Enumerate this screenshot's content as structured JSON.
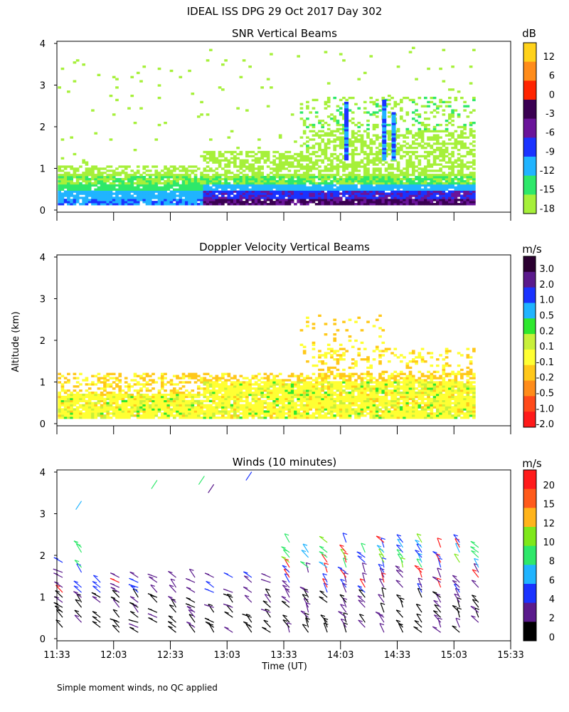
{
  "title": "IDEAL ISS DPG  29 Oct 2017 Day 302",
  "ylabel": "Altitude (km)",
  "xlabel": "Time (UT)",
  "footnote": "Simple moment winds, no QC applied",
  "x_ticks": [
    "11:33",
    "12:03",
    "12:33",
    "13:03",
    "13:33",
    "14:03",
    "14:33",
    "15:03",
    "15:33"
  ],
  "y_ticks": [
    "0",
    "1",
    "2",
    "3",
    "4"
  ],
  "chart_data": [
    {
      "type": "heatmap",
      "title": "SNR Vertical Beams",
      "xlabel": "Time (UT)",
      "ylabel": "Altitude (km)",
      "xlim": [
        "11:33",
        "15:33"
      ],
      "ylim": [
        0,
        4
      ],
      "colorbar_unit": "dB",
      "colorbar_labels": [
        "12",
        "6",
        "0",
        "-3",
        "-6",
        "-9",
        "-12",
        "-15",
        "-18"
      ],
      "colors": [
        "#ffd21a",
        "#ff8c1a",
        "#ff2400",
        "#3a0052",
        "#6a149a",
        "#1a33ff",
        "#20b4ff",
        "#2ee86a",
        "#a6f03a"
      ],
      "data_extent": {
        "x_start": "11:33",
        "x_end": "15:13",
        "y_min": 0.1,
        "y_max": 4.0
      }
    },
    {
      "type": "heatmap",
      "title": "Doppler Velocity Vertical Beams",
      "xlabel": "Time (UT)",
      "ylabel": "Altitude (km)",
      "xlim": [
        "11:33",
        "15:33"
      ],
      "ylim": [
        0,
        4
      ],
      "colorbar_unit": "m/s",
      "colorbar_labels": [
        "3.0",
        "2.0",
        "1.0",
        "0.5",
        "0.2",
        "0.1",
        "-0.1",
        "-0.2",
        "-0.5",
        "-1.0",
        "-2.0"
      ],
      "colors": [
        "#2a0030",
        "#5a1a8c",
        "#1a33ff",
        "#20b4ff",
        "#2ee82e",
        "#c8f03a",
        "#ffff33",
        "#ffc81a",
        "#ff8c1a",
        "#ff4a1a",
        "#ff1a1a"
      ],
      "data_extent": {
        "x_start": "11:33",
        "x_end": "15:13",
        "y_min": 0.1,
        "y_max": 2.6
      }
    },
    {
      "type": "scatter",
      "title": "Winds (10 minutes)",
      "xlabel": "Time (UT)",
      "ylabel": "Altitude (km)",
      "xlim": [
        "11:33",
        "15:33"
      ],
      "ylim": [
        0,
        4
      ],
      "colorbar_unit": "m/s",
      "colorbar_labels": [
        "20",
        "15",
        "12",
        "10",
        "8",
        "6",
        "4",
        "2",
        "0"
      ],
      "colors": [
        "#ff1a1a",
        "#ff5a1a",
        "#ffb41a",
        "#7ee81a",
        "#2ee86a",
        "#20b4ff",
        "#1a33ff",
        "#5a1a8c",
        "#000000"
      ],
      "wind_barb_columns_utc": [
        "11:33",
        "11:43",
        "11:53",
        "12:03",
        "12:13",
        "12:23",
        "12:33",
        "12:43",
        "12:53",
        "13:03",
        "13:13",
        "13:23",
        "13:33",
        "13:43",
        "13:53",
        "14:03",
        "14:13",
        "14:23",
        "14:33",
        "14:43",
        "14:53",
        "15:03",
        "15:13"
      ]
    }
  ]
}
